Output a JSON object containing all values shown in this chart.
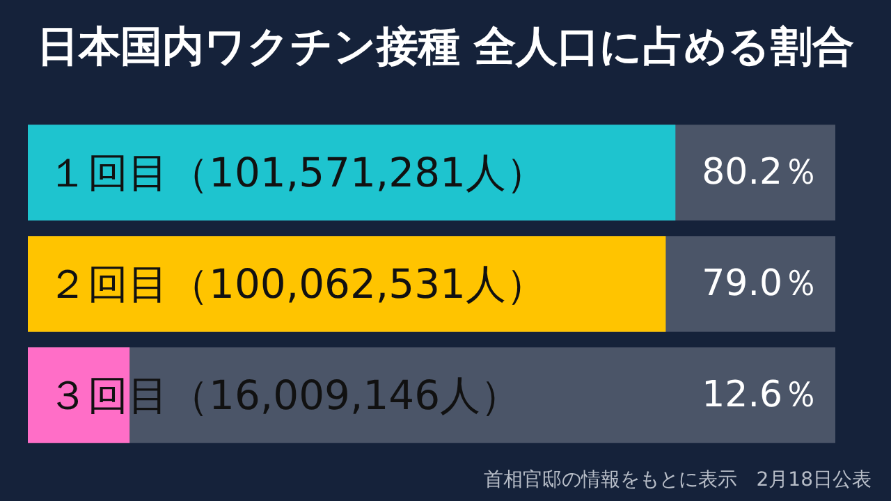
{
  "chart_data": {
    "type": "bar",
    "title": "日本国内ワクチン接種 全人口に占める割合",
    "orientation": "horizontal",
    "categories": [
      "１回目（101,571,281人）",
      "２回目（100,062,531人）",
      "３回目（16,009,146人）"
    ],
    "values": [
      80.2,
      79.0,
      12.6
    ],
    "colors": [
      "#1ec4cf",
      "#ffc400",
      "#ff6ec7"
    ],
    "value_labels": [
      "80.2％",
      "79.0％",
      "12.6％"
    ],
    "xlim": [
      0,
      100
    ],
    "tick_labels": "y",
    "annotations": [
      "首相官邸の情報をもとに表示　2月18日公表"
    ]
  }
}
